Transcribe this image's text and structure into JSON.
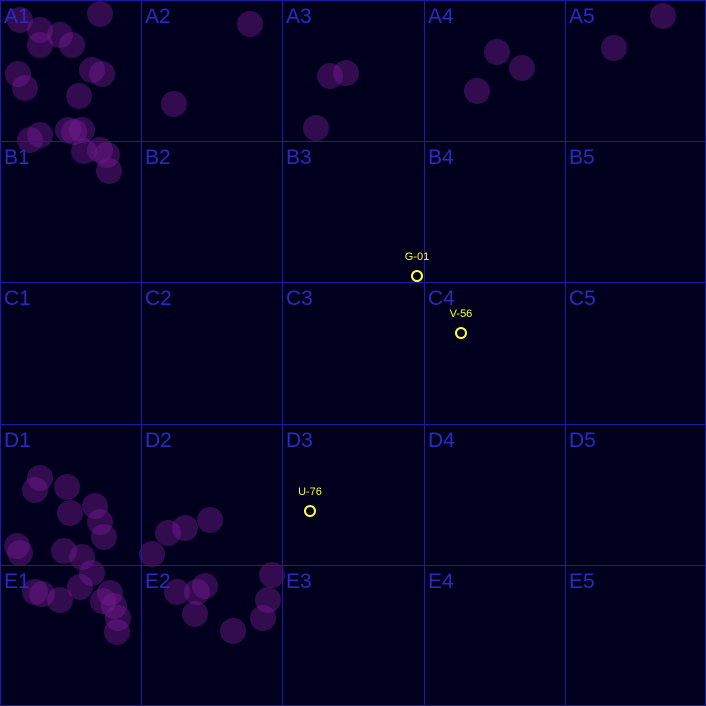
{
  "board": {
    "rows": [
      "A",
      "B",
      "C",
      "D",
      "E"
    ],
    "columns": [
      "1",
      "2",
      "3",
      "4",
      "5"
    ],
    "cells": [
      "A1",
      "A2",
      "A3",
      "A4",
      "A5",
      "B1",
      "B2",
      "B3",
      "B4",
      "B5",
      "C1",
      "C2",
      "C3",
      "C4",
      "C5",
      "D1",
      "D2",
      "D3",
      "D4",
      "D5",
      "E1",
      "E2",
      "E3",
      "E4",
      "E5"
    ]
  },
  "markers": [
    {
      "id": "G-01",
      "label": "G-01"
    },
    {
      "id": "V-56",
      "label": "V-56"
    },
    {
      "id": "U-76",
      "label": "U-76"
    }
  ],
  "colors": {
    "background": "#00001e",
    "grid": "#1c1ca8",
    "cell_label": "#2a2ac4",
    "blob": "#7a1c96",
    "marker": "#ffff33"
  }
}
